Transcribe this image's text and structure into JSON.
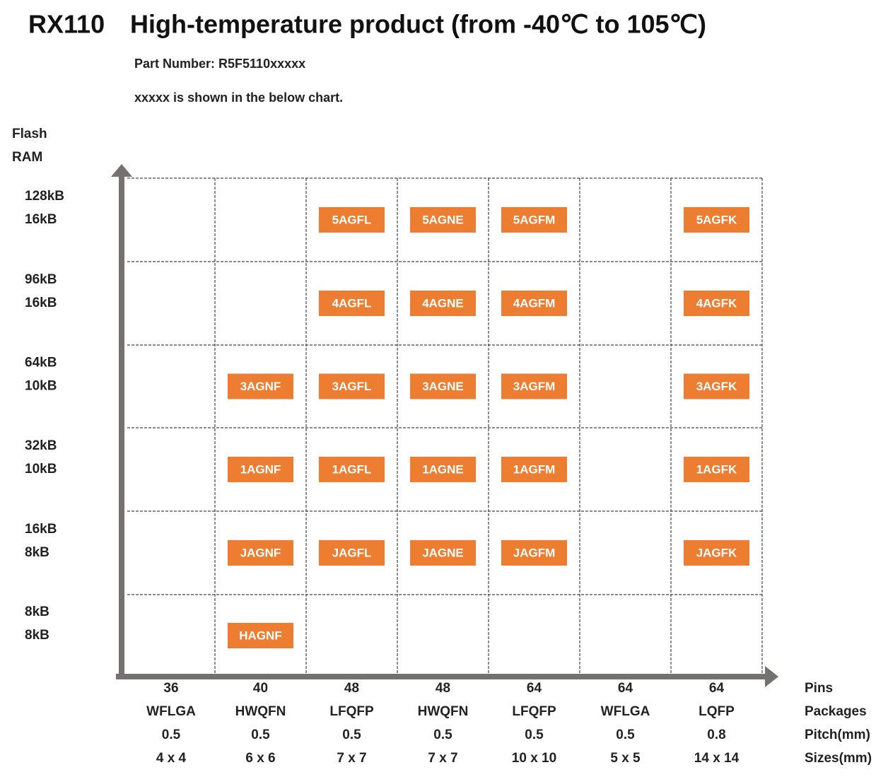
{
  "header": {
    "model": "RX110",
    "title": "High-temperature product (from -40℃ to 105℃)",
    "part_number": "Part Number: R5F5110xxxxx",
    "note": "xxxxx is shown in the below chart."
  },
  "y_axis": {
    "labels": [
      "Flash",
      "RAM"
    ]
  },
  "x_axis": {
    "labels": [
      "Pins",
      "Packages",
      "Pitch(mm)",
      "Sizes(mm)"
    ]
  },
  "rows": [
    {
      "flash": "128kB",
      "ram": "16kB"
    },
    {
      "flash": "96kB",
      "ram": "16kB"
    },
    {
      "flash": "64kB",
      "ram": "10kB"
    },
    {
      "flash": "32kB",
      "ram": "10kB"
    },
    {
      "flash": "16kB",
      "ram": "8kB"
    },
    {
      "flash": "8kB",
      "ram": "8kB"
    }
  ],
  "columns": [
    {
      "pins": "36",
      "package": "WFLGA",
      "pitch": "0.5",
      "size": "4 x 4"
    },
    {
      "pins": "40",
      "package": "HWQFN",
      "pitch": "0.5",
      "size": "6 x 6"
    },
    {
      "pins": "48",
      "package": "LFQFP",
      "pitch": "0.5",
      "size": "7 x 7"
    },
    {
      "pins": "48",
      "package": "HWQFN",
      "pitch": "0.5",
      "size": "7 x 7"
    },
    {
      "pins": "64",
      "package": "LFQFP",
      "pitch": "0.5",
      "size": "10 x 10"
    },
    {
      "pins": "64",
      "package": "WFLGA",
      "pitch": "0.5",
      "size": "5 x 5"
    },
    {
      "pins": "64",
      "package": "LQFP",
      "pitch": "0.8",
      "size": "14 x 14"
    }
  ],
  "cells": [
    [
      null,
      null,
      "5AGFL",
      "5AGNE",
      "5AGFM",
      null,
      "5AGFK"
    ],
    [
      null,
      null,
      "4AGFL",
      "4AGNE",
      "4AGFM",
      null,
      "4AGFK"
    ],
    [
      null,
      "3AGNF",
      "3AGFL",
      "3AGNE",
      "3AGFM",
      null,
      "3AGFK"
    ],
    [
      null,
      "1AGNF",
      "1AGFL",
      "1AGNE",
      "1AGFM",
      null,
      "1AGFK"
    ],
    [
      null,
      "JAGNF",
      "JAGFL",
      "JAGNE",
      "JAGFM",
      null,
      "JAGFK"
    ],
    [
      null,
      "HAGNF",
      null,
      null,
      null,
      null,
      null
    ]
  ]
}
